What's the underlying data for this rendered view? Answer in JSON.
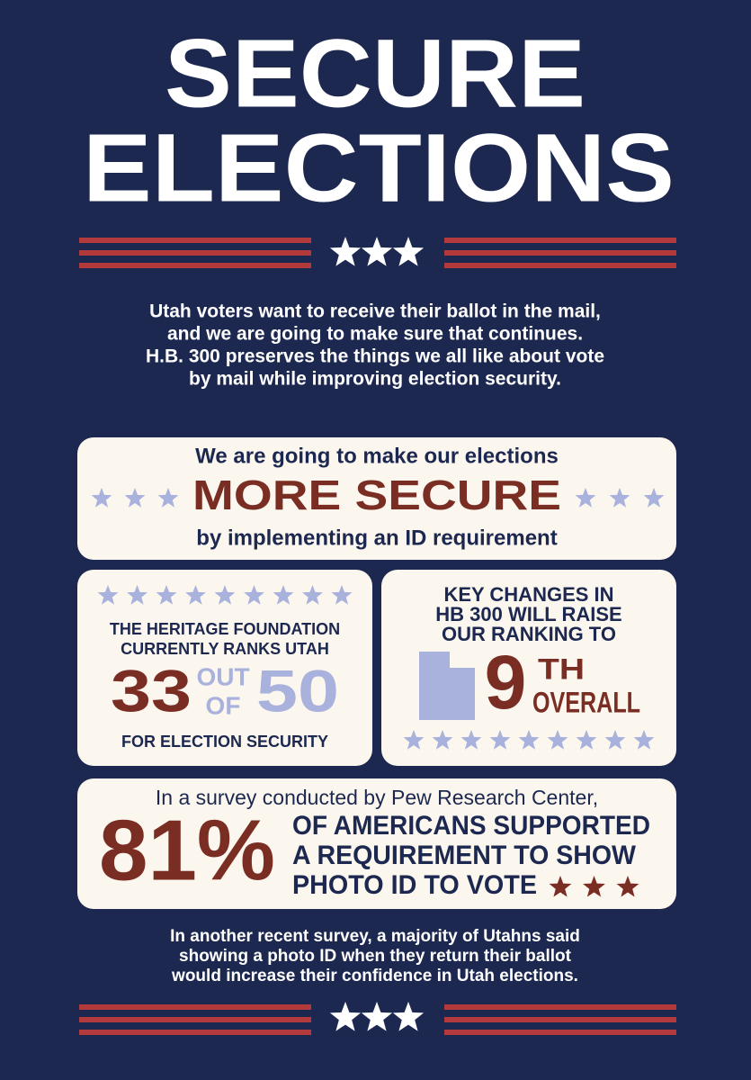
{
  "title": {
    "lines": [
      "SECURE",
      "ELECTIONS"
    ]
  },
  "intro": {
    "lines": [
      "Utah voters want to receive their ballot in the mail,",
      "and we are going to make sure that continues.",
      "H.B. 300 preserves the things we all like about vote",
      "by mail while improving election security."
    ]
  },
  "secure_box": {
    "lead": "We are going to make our elections",
    "headline": "MORE SECURE",
    "tail": "by implementing an ID requirement"
  },
  "ranking_box": {
    "lines": [
      "THE HERITAGE FOUNDATION",
      "CURRENTLY RANKS UTAH"
    ],
    "rank": "33",
    "out_of": [
      "OUT",
      "OF"
    ],
    "total": "50",
    "footer": "FOR ELECTION SECURITY"
  },
  "change_box": {
    "lines": [
      "KEY CHANGES IN",
      "HB 300 WILL RAISE",
      "OUR RANKING TO"
    ],
    "rank": "9",
    "suffix": "TH",
    "overall": "OVERALL"
  },
  "survey_box": {
    "lead": "In a survey conducted by Pew Research Center,",
    "percent": "81%",
    "lines": [
      "OF AMERICANS SUPPORTED",
      "A REQUIREMENT TO SHOW",
      "PHOTO ID TO VOTE"
    ]
  },
  "closing": {
    "lines": [
      "In another recent survey, a majority of Utahns said",
      "showing a photo ID when they return their ballot",
      "would increase their confidence in Utah elections."
    ]
  }
}
